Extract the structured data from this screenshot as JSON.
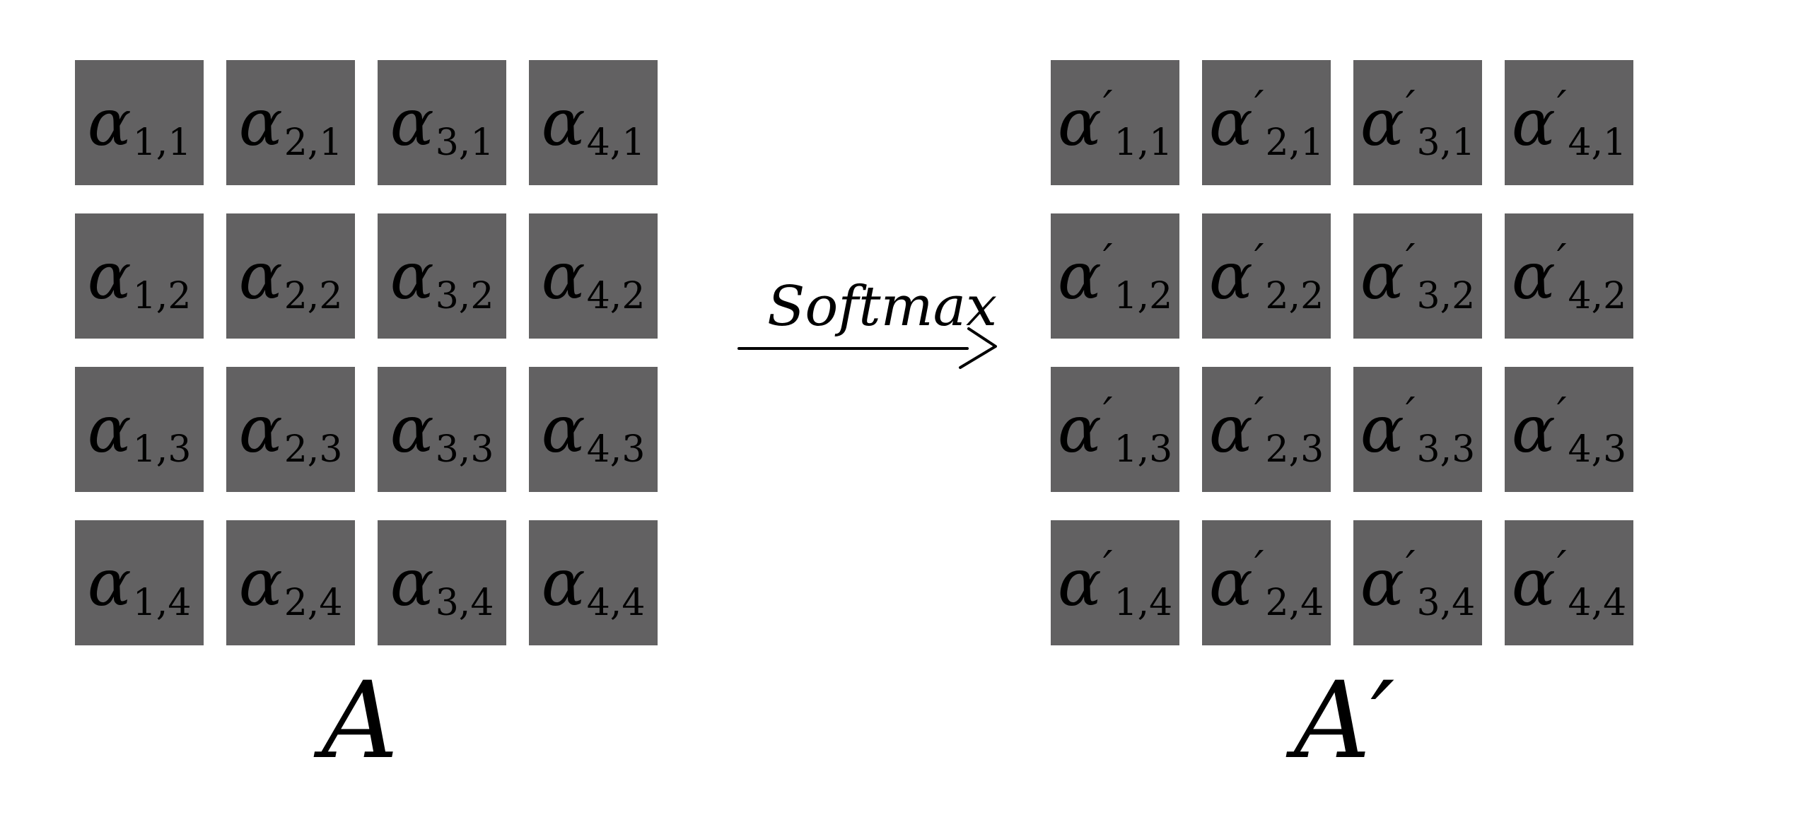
{
  "diagram": {
    "colors": {
      "cell_fill": "#626162",
      "ink": "#000000",
      "background": "#ffffff"
    },
    "arrow": {
      "label": "Softmax"
    },
    "matrices": [
      {
        "id": "A",
        "name": "A",
        "rows": [
          [
            {
              "symbol": "α",
              "prime": "",
              "sub": "1,1"
            },
            {
              "symbol": "α",
              "prime": "",
              "sub": "2,1"
            },
            {
              "symbol": "α",
              "prime": "",
              "sub": "3,1"
            },
            {
              "symbol": "α",
              "prime": "",
              "sub": "4,1"
            }
          ],
          [
            {
              "symbol": "α",
              "prime": "",
              "sub": "1,2"
            },
            {
              "symbol": "α",
              "prime": "",
              "sub": "2,2"
            },
            {
              "symbol": "α",
              "prime": "",
              "sub": "3,2"
            },
            {
              "symbol": "α",
              "prime": "",
              "sub": "4,2"
            }
          ],
          [
            {
              "symbol": "α",
              "prime": "",
              "sub": "1,3"
            },
            {
              "symbol": "α",
              "prime": "",
              "sub": "2,3"
            },
            {
              "symbol": "α",
              "prime": "",
              "sub": "3,3"
            },
            {
              "symbol": "α",
              "prime": "",
              "sub": "4,3"
            }
          ],
          [
            {
              "symbol": "α",
              "prime": "",
              "sub": "1,4"
            },
            {
              "symbol": "α",
              "prime": "",
              "sub": "2,4"
            },
            {
              "symbol": "α",
              "prime": "",
              "sub": "3,4"
            },
            {
              "symbol": "α",
              "prime": "",
              "sub": "4,4"
            }
          ]
        ]
      },
      {
        "id": "A-prime",
        "name": "A′",
        "rows": [
          [
            {
              "symbol": "α",
              "prime": "′",
              "sub": "1,1"
            },
            {
              "symbol": "α",
              "prime": "′",
              "sub": "2,1"
            },
            {
              "symbol": "α",
              "prime": "′",
              "sub": "3,1"
            },
            {
              "symbol": "α",
              "prime": "′",
              "sub": "4,1"
            }
          ],
          [
            {
              "symbol": "α",
              "prime": "′",
              "sub": "1,2"
            },
            {
              "symbol": "α",
              "prime": "′",
              "sub": "2,2"
            },
            {
              "symbol": "α",
              "prime": "′",
              "sub": "3,2"
            },
            {
              "symbol": "α",
              "prime": "′",
              "sub": "4,2"
            }
          ],
          [
            {
              "symbol": "α",
              "prime": "′",
              "sub": "1,3"
            },
            {
              "symbol": "α",
              "prime": "′",
              "sub": "2,3"
            },
            {
              "symbol": "α",
              "prime": "′",
              "sub": "3,3"
            },
            {
              "symbol": "α",
              "prime": "′",
              "sub": "4,3"
            }
          ],
          [
            {
              "symbol": "α",
              "prime": "′",
              "sub": "1,4"
            },
            {
              "symbol": "α",
              "prime": "′",
              "sub": "2,4"
            },
            {
              "symbol": "α",
              "prime": "′",
              "sub": "3,4"
            },
            {
              "symbol": "α",
              "prime": "′",
              "sub": "4,4"
            }
          ]
        ]
      }
    ]
  }
}
